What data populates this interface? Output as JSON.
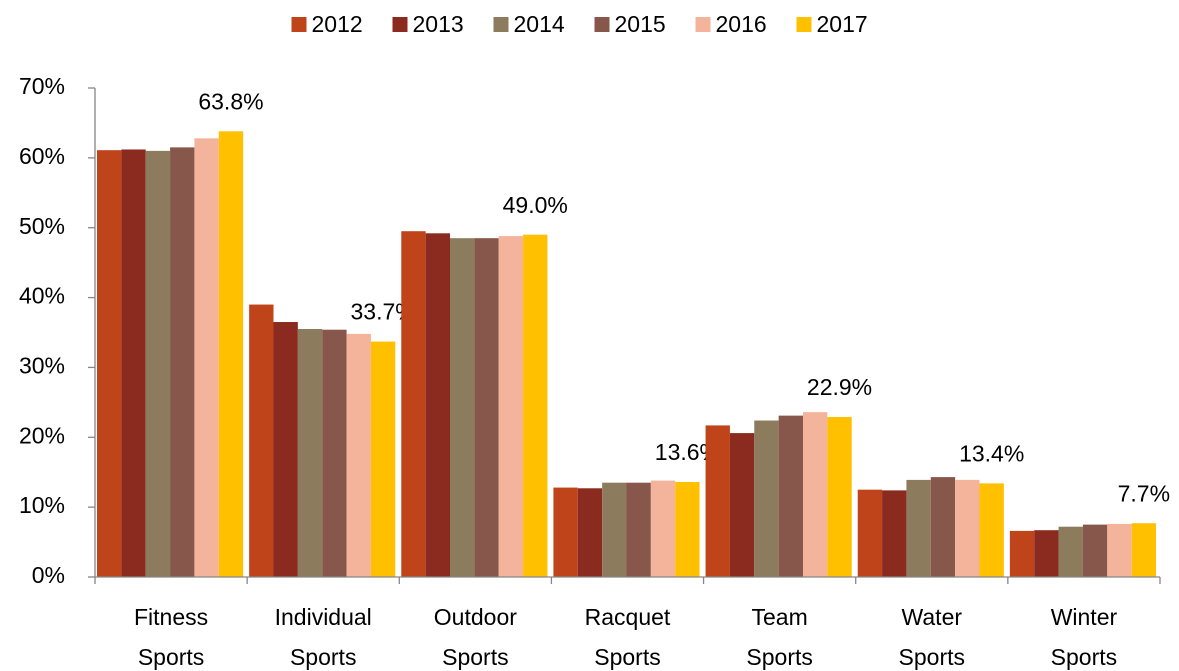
{
  "chart_data": {
    "type": "bar",
    "categories": [
      "Fitness Sports",
      "Individual Sports",
      "Outdoor Sports",
      "Racquet Sports",
      "Team Sports",
      "Water Sports",
      "Winter Sports"
    ],
    "series": [
      {
        "name": "2012",
        "color": "#c0441a",
        "values": [
          61.1,
          39.0,
          49.5,
          12.8,
          21.7,
          12.5,
          6.6
        ]
      },
      {
        "name": "2013",
        "color": "#8b2a1e",
        "values": [
          61.2,
          36.5,
          49.2,
          12.7,
          20.6,
          12.4,
          6.7
        ]
      },
      {
        "name": "2014",
        "color": "#8c7b5c",
        "values": [
          61.0,
          35.5,
          48.5,
          13.5,
          22.4,
          13.9,
          7.2
        ]
      },
      {
        "name": "2015",
        "color": "#86574a",
        "values": [
          61.5,
          35.4,
          48.5,
          13.5,
          23.1,
          14.3,
          7.5
        ]
      },
      {
        "name": "2016",
        "color": "#f4b49c",
        "values": [
          62.8,
          34.8,
          48.8,
          13.8,
          23.6,
          13.9,
          7.6
        ]
      },
      {
        "name": "2017",
        "color": "#ffc000",
        "values": [
          63.8,
          33.7,
          49.0,
          13.6,
          22.9,
          13.4,
          7.7
        ],
        "value_labels": [
          "63.8%",
          "33.7%",
          "49.0%",
          "13.6%",
          "22.9%",
          "13.4%",
          "7.7%"
        ]
      }
    ],
    "ylim": [
      0,
      70
    ],
    "yticks": [
      {
        "value": 0,
        "label": "0%"
      },
      {
        "value": 10,
        "label": "10%"
      },
      {
        "value": 20,
        "label": "20%"
      },
      {
        "value": 30,
        "label": "30%"
      },
      {
        "value": 40,
        "label": "40%"
      },
      {
        "value": 50,
        "label": "50%"
      },
      {
        "value": 60,
        "label": "60%"
      },
      {
        "value": 70,
        "label": "70%"
      }
    ],
    "legend": "top",
    "grid": false
  }
}
